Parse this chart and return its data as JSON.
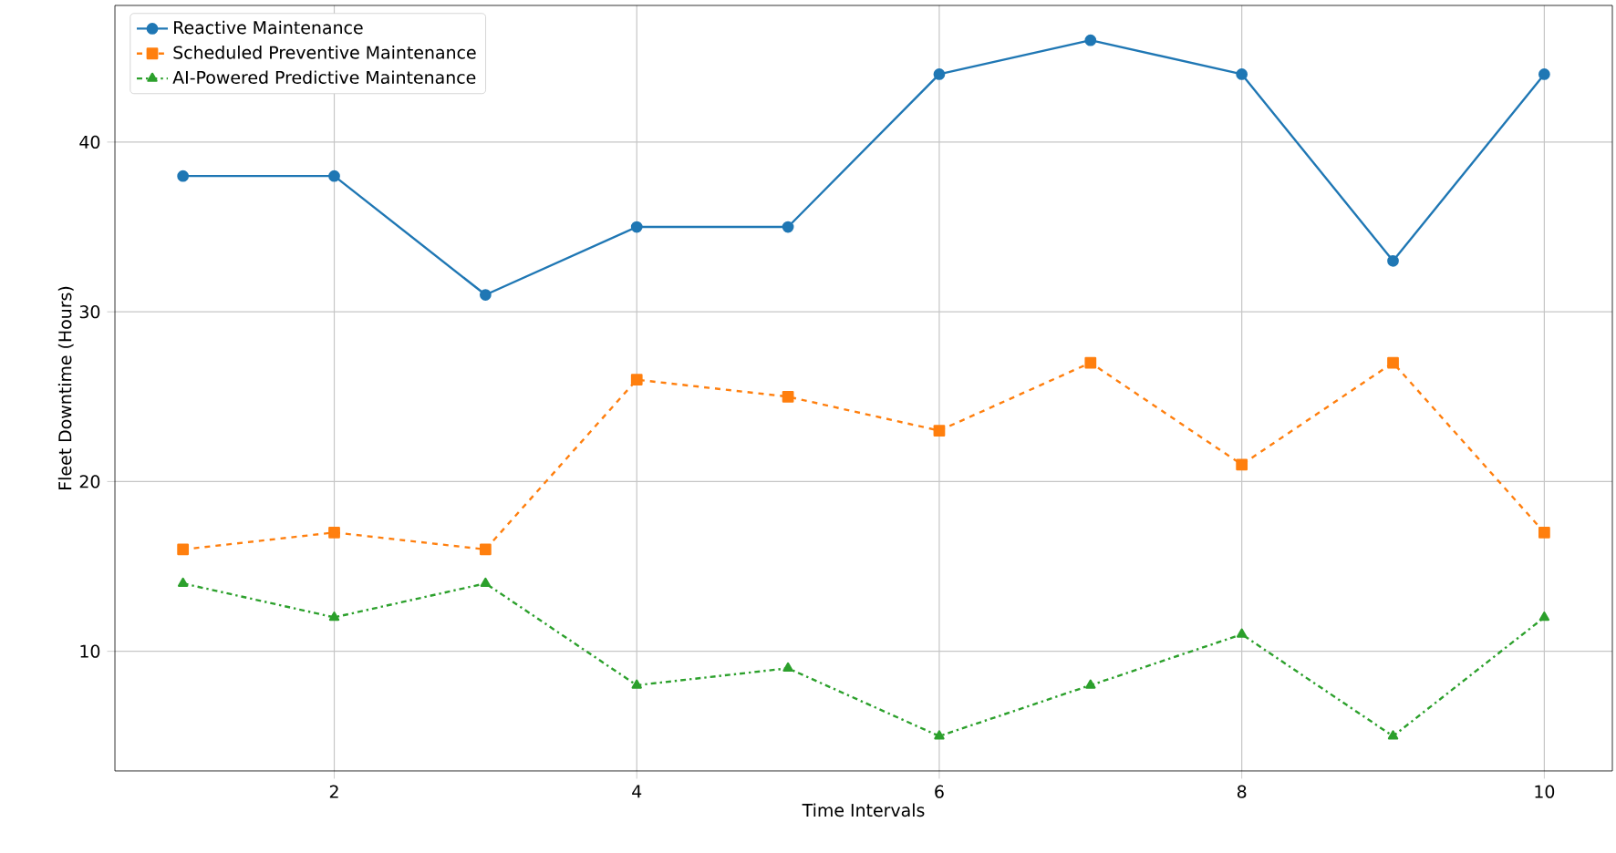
{
  "chart_data": {
    "type": "line",
    "xlabel": "Time Intervals",
    "ylabel": "Fleet Downtime (Hours)",
    "x": [
      1,
      2,
      3,
      4,
      5,
      6,
      7,
      8,
      9,
      10
    ],
    "series": [
      {
        "name": "Reactive Maintenance",
        "color": "#1f77b4",
        "marker": "circle",
        "line_style": "solid",
        "values": [
          38,
          38,
          31,
          35,
          35,
          44,
          46,
          44,
          33,
          44
        ]
      },
      {
        "name": "Scheduled Preventive Maintenance",
        "color": "#ff7f0e",
        "marker": "square",
        "line_style": "dashed",
        "values": [
          16,
          17,
          16,
          26,
          25,
          23,
          27,
          21,
          27,
          17
        ]
      },
      {
        "name": "AI-Powered Predictive Maintenance",
        "color": "#2ca02c",
        "marker": "triangle",
        "line_style": "dashdot",
        "values": [
          14,
          12,
          14,
          8,
          9,
          5,
          8,
          11,
          5,
          12
        ]
      }
    ],
    "xlim": [
      0.55,
      10.45
    ],
    "ylim": [
      2.95,
      48.05
    ],
    "xticks": [
      2,
      4,
      6,
      8,
      10
    ],
    "yticks": [
      10,
      20,
      30,
      40
    ],
    "grid": true,
    "legend": "top left"
  }
}
